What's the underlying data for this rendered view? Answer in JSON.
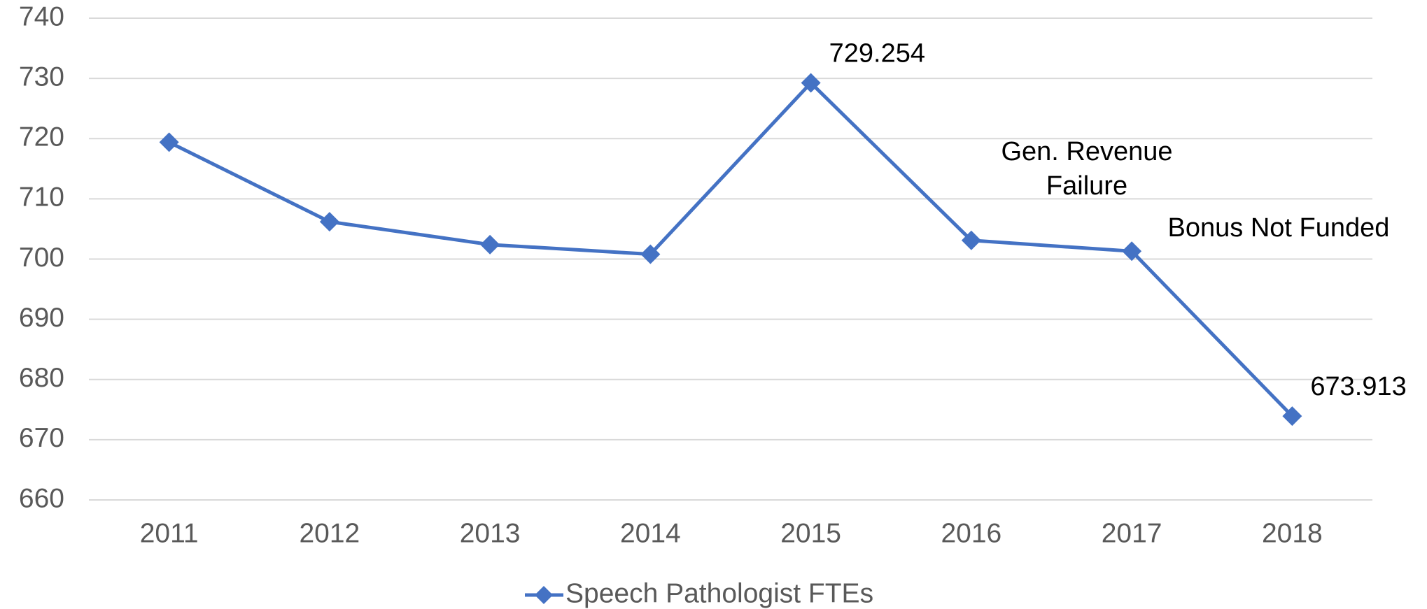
{
  "chart_data": {
    "type": "line",
    "categories": [
      "2011",
      "2012",
      "2013",
      "2014",
      "2015",
      "2016",
      "2017",
      "2018"
    ],
    "series": [
      {
        "name": "Speech Pathologist FTEs",
        "color": "#4472c4",
        "values": [
          719.4,
          706.2,
          702.4,
          700.8,
          729.254,
          703.1,
          701.3,
          673.913
        ],
        "value_labels": [
          null,
          null,
          null,
          null,
          "729.254",
          null,
          null,
          "673.913"
        ]
      }
    ],
    "annotations": [
      {
        "lines": [
          "Gen. Revenue",
          "Failure"
        ]
      },
      {
        "lines": [
          "Bonus Not Funded"
        ]
      }
    ],
    "ylim": [
      660,
      740
    ],
    "yticks": [
      660,
      670,
      680,
      690,
      700,
      710,
      720,
      730,
      740
    ],
    "grid": true,
    "legend": "bottom"
  }
}
